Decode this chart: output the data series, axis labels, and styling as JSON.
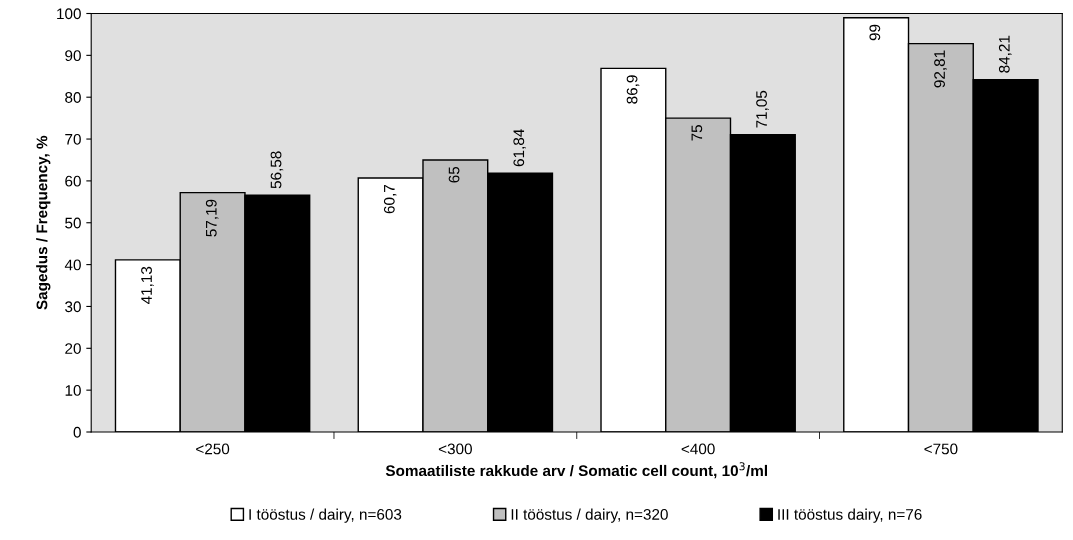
{
  "chart_data": {
    "type": "bar",
    "ylabel": "Sagedus / Frequency, %",
    "xlabel": "Somaatiliste rakkude arv / Somatic cell count, 10$^{3}$/ml",
    "categories": [
      "<250",
      "<300",
      "<400",
      "<750"
    ],
    "series": [
      {
        "name": "I tööstus / dairy, n=603",
        "color": "#ffffff",
        "values": [
          41.13,
          60.7,
          86.9,
          99
        ],
        "value_labels": [
          "41,13",
          "60,7",
          "86,9",
          "99"
        ]
      },
      {
        "name": "II tööstus / dairy, n=320",
        "color": "#c0c0c0",
        "values": [
          57.19,
          65,
          75,
          92.81
        ],
        "value_labels": [
          "57,19",
          "65",
          "75",
          "92,81"
        ]
      },
      {
        "name": "III tööstus dairy, n=76",
        "color": "#000000",
        "values": [
          56.58,
          61.84,
          71.05,
          84.21
        ],
        "value_labels": [
          "56,58",
          "61,84",
          "71,05",
          "84,21"
        ]
      }
    ],
    "ylim": [
      0,
      100
    ],
    "yticks": [
      0,
      10,
      20,
      30,
      40,
      50,
      60,
      70,
      80,
      90,
      100
    ],
    "grid": false,
    "legend": "bottom"
  }
}
